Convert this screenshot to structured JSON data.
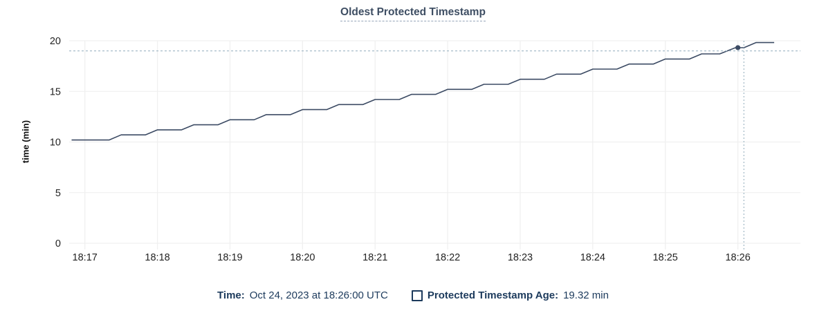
{
  "header": {
    "title": "Oldest Protected Timestamp"
  },
  "colors": {
    "title_text": "#3e4e63",
    "legend_text": "#1c3a5c",
    "series_line": "#3b4a63",
    "hover_dot": "#3b4a63",
    "crosshair": "#a7bcc9",
    "grid_line": "#f0f0f0",
    "axis_tick_text": "#232323"
  },
  "chart_data": {
    "type": "line",
    "title": "Oldest Protected Timestamp",
    "xlabel": "",
    "ylabel": "time (min)",
    "ylim": [
      0,
      20
    ],
    "grid": true,
    "y_ticks": [
      0,
      5,
      10,
      15,
      20
    ],
    "x_ticks": [
      "18:17",
      "18:18",
      "18:19",
      "18:20",
      "18:21",
      "18:22",
      "18:23",
      "18:24",
      "18:25",
      "18:26"
    ],
    "series": [
      {
        "name": "Protected Timestamp Age",
        "unit": "min",
        "color": "#3b4a63",
        "points": [
          [
            "18:16:49",
            10.2
          ],
          [
            "18:17:20",
            10.2
          ],
          [
            "18:17:30",
            10.7
          ],
          [
            "18:17:50",
            10.7
          ],
          [
            "18:18:00",
            11.2
          ],
          [
            "18:18:20",
            11.2
          ],
          [
            "18:18:30",
            11.7
          ],
          [
            "18:18:50",
            11.7
          ],
          [
            "18:19:00",
            12.2
          ],
          [
            "18:19:20",
            12.2
          ],
          [
            "18:19:30",
            12.7
          ],
          [
            "18:19:50",
            12.7
          ],
          [
            "18:20:00",
            13.2
          ],
          [
            "18:20:20",
            13.2
          ],
          [
            "18:20:30",
            13.7
          ],
          [
            "18:20:50",
            13.7
          ],
          [
            "18:21:00",
            14.2
          ],
          [
            "18:21:20",
            14.2
          ],
          [
            "18:21:30",
            14.7
          ],
          [
            "18:21:50",
            14.7
          ],
          [
            "18:22:00",
            15.2
          ],
          [
            "18:22:20",
            15.2
          ],
          [
            "18:22:30",
            15.7
          ],
          [
            "18:22:50",
            15.7
          ],
          [
            "18:23:00",
            16.2
          ],
          [
            "18:23:20",
            16.2
          ],
          [
            "18:23:30",
            16.7
          ],
          [
            "18:23:50",
            16.7
          ],
          [
            "18:24:00",
            17.2
          ],
          [
            "18:24:20",
            17.2
          ],
          [
            "18:24:30",
            17.7
          ],
          [
            "18:24:50",
            17.7
          ],
          [
            "18:25:00",
            18.2
          ],
          [
            "18:25:20",
            18.2
          ],
          [
            "18:25:30",
            18.7
          ],
          [
            "18:25:45",
            18.7
          ],
          [
            "18:25:58",
            19.32
          ],
          [
            "18:26:05",
            19.32
          ],
          [
            "18:26:15",
            19.82
          ],
          [
            "18:26:30",
            19.82
          ]
        ]
      }
    ],
    "hover": {
      "point_time": "18:26:00",
      "point_value": 19.32,
      "cursor_time": "18:26:05",
      "cursor_value": 19.0
    },
    "legend_position": "bottom"
  },
  "legend": {
    "time_label": "Time:",
    "time_value": "Oct 24, 2023 at 18:26:00 UTC",
    "series_label": "Protected Timestamp Age:",
    "series_value": "19.32 min"
  }
}
